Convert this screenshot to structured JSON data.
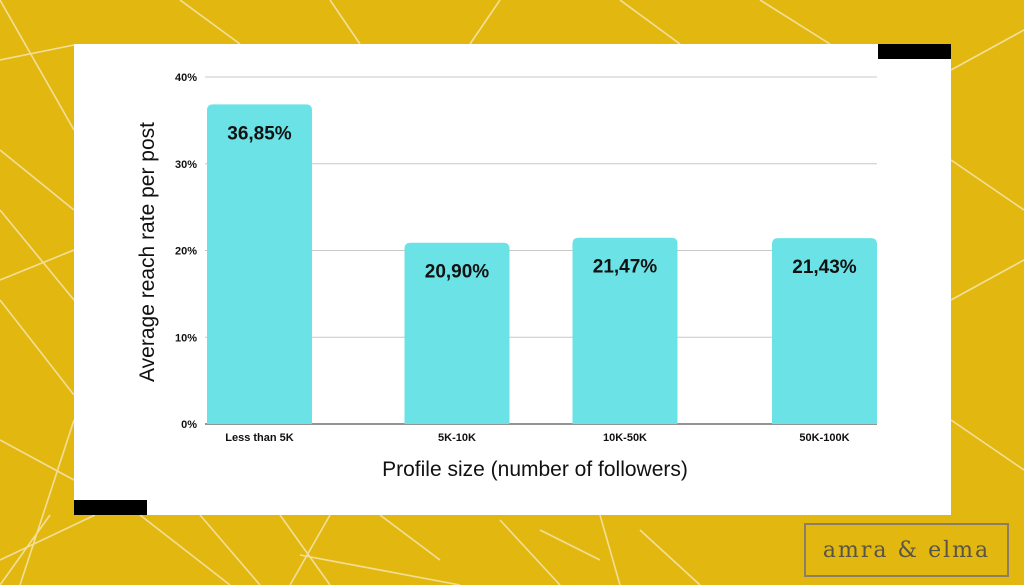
{
  "chart_data": {
    "type": "bar",
    "categories": [
      "Less than 5K",
      "5K-10K",
      "10K-50K",
      "50K-100K"
    ],
    "values": [
      36.85,
      20.9,
      21.47,
      21.43
    ],
    "data_labels": [
      "36,85%",
      "20,90%",
      "21,47%",
      "21,43%"
    ],
    "title": "",
    "xlabel": "Profile size (number of followers)",
    "ylabel": "Average reach rate per post",
    "ylim": [
      0,
      40
    ],
    "yticks": [
      0,
      10,
      20,
      30,
      40
    ],
    "ytick_labels": [
      "0%",
      "10%",
      "20%",
      "30%",
      "40%"
    ],
    "grid": true,
    "bar_color": "#6be3e6"
  },
  "brand": {
    "name": "amra & elma"
  },
  "colors": {
    "background": "#e2b810",
    "card": "#ffffff",
    "accent_bar": "#000000",
    "grid": "#c8c8c8",
    "text": "#111111"
  }
}
